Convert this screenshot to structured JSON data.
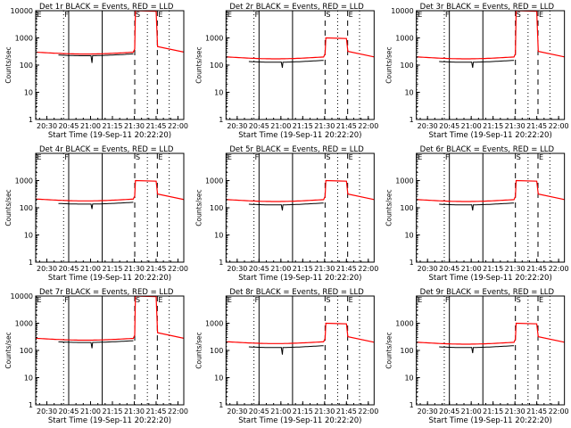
{
  "chart_data": {
    "type": "line",
    "layout": "3x3 grid of log-scale rate plots",
    "ylabel": "Counts/sec",
    "xlabel": "Start Time (19-Sep-11 20:22:20)",
    "xlim": [
      "20:22:20",
      "22:04:00"
    ],
    "x_tick_labels": [
      "20:30",
      "20:45",
      "21:00",
      "21:15",
      "21:30",
      "21:45",
      "22:00"
    ],
    "yscale": "log",
    "ylim": [
      1,
      10000
    ],
    "y_tick_labels": [
      "1",
      "10",
      "100",
      "1000",
      "10000"
    ],
    "colors": {
      "events": "#000000",
      "lld": "#ff0000"
    },
    "markers": [
      {
        "label": "E",
        "time": "20:22:40",
        "style": "dotted"
      },
      {
        "label": "F",
        "time": "20:41:30",
        "style": "dotted"
      },
      {
        "label": "",
        "time": "20:45:00",
        "style": "solid"
      },
      {
        "label": "",
        "time": "21:08:00",
        "style": "solid"
      },
      {
        "label": "S",
        "time": "21:30:20",
        "style": "dashed"
      },
      {
        "label": "",
        "time": "21:39:00",
        "style": "dotted"
      },
      {
        "label": "E",
        "time": "21:45:50",
        "style": "dashed"
      },
      {
        "label": "",
        "time": "21:54:00",
        "style": "dotted"
      }
    ],
    "panels": [
      {
        "title": "Det 1r BLACK = Events, RED = LLD",
        "y_ticks_shown": [
          "1",
          "10",
          "100",
          "1000",
          "10000"
        ],
        "events_level": 260,
        "lld_level": 300,
        "events_dip": 120,
        "peak": 10000,
        "post_lld": 300
      },
      {
        "title": "Det 2r BLACK = Events, RED = LLD",
        "y_ticks_shown": [
          "1",
          "10",
          "100",
          "1000"
        ],
        "events_level": 150,
        "lld_level": 200,
        "events_dip": 80,
        "peak": 1000,
        "post_lld": 200
      },
      {
        "title": "Det 3r BLACK = Events, RED = LLD",
        "y_ticks_shown": [
          "1",
          "10",
          "100",
          "1000",
          "10000"
        ],
        "events_level": 150,
        "lld_level": 200,
        "events_dip": 80,
        "peak": 10000,
        "post_lld": 200
      },
      {
        "title": "Det 4r BLACK = Events, RED = LLD",
        "y_ticks_shown": [
          "1",
          "10",
          "100",
          "1000"
        ],
        "events_level": 160,
        "lld_level": 210,
        "events_dip": 90,
        "peak": 1000,
        "post_lld": 200
      },
      {
        "title": "Det 5r BLACK = Events, RED = LLD",
        "y_ticks_shown": [
          "1",
          "10",
          "100",
          "1000"
        ],
        "events_level": 150,
        "lld_level": 200,
        "events_dip": 80,
        "peak": 1000,
        "post_lld": 200
      },
      {
        "title": "Det 6r BLACK = Events, RED = LLD",
        "y_ticks_shown": [
          "1",
          "10",
          "100",
          "1000"
        ],
        "events_level": 150,
        "lld_level": 200,
        "events_dip": 80,
        "peak": 1000,
        "post_lld": 200
      },
      {
        "title": "Det 7r BLACK = Events, RED = LLD",
        "y_ticks_shown": [
          "1",
          "10",
          "100",
          "1000",
          "10000"
        ],
        "events_level": 230,
        "lld_level": 280,
        "events_dip": 120,
        "peak": 10000,
        "post_lld": 280
      },
      {
        "title": "Det 8r BLACK = Events, RED = LLD",
        "y_ticks_shown": [
          "1",
          "10",
          "100",
          "1000"
        ],
        "events_level": 150,
        "lld_level": 210,
        "events_dip": 70,
        "peak": 1000,
        "post_lld": 200
      },
      {
        "title": "Det 9r BLACK = Events, RED = LLD",
        "y_ticks_shown": [
          "1",
          "10",
          "100",
          "1000"
        ],
        "events_level": 150,
        "lld_level": 200,
        "events_dip": 80,
        "peak": 1000,
        "post_lld": 200
      }
    ]
  }
}
